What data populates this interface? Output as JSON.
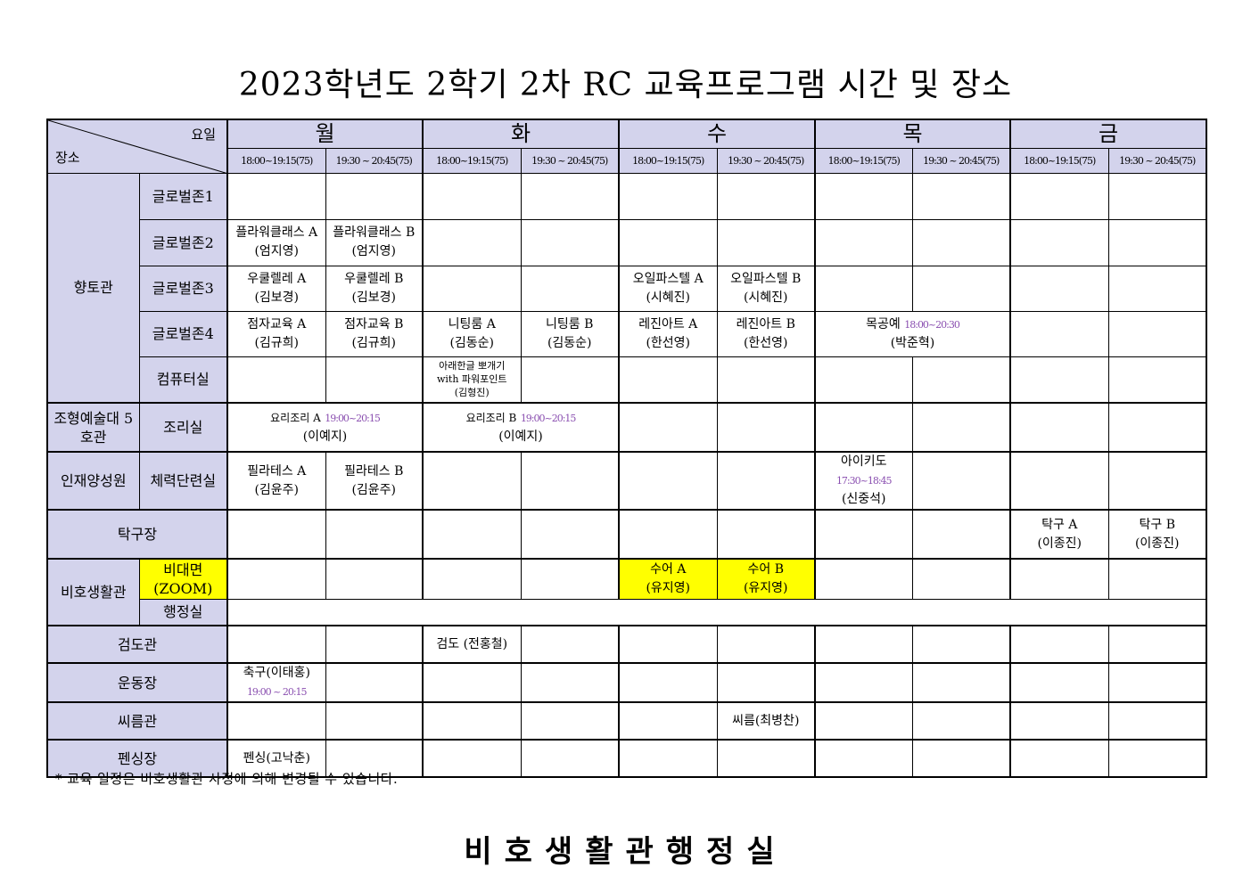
{
  "title": "2023학년도 2학기 2차 RC 교육프로그램 시간 및 장소",
  "header": {
    "corner_day": "요일",
    "corner_place": "장소",
    "days": [
      "월",
      "화",
      "수",
      "목",
      "금"
    ],
    "slots": [
      "18:00~19:15(75)",
      "19:30 ~ 20:45(75)"
    ]
  },
  "colors": {
    "header_bg": "#d3d3ec",
    "highlight": "#ffff00",
    "time_text": "#8a4fb0"
  },
  "rows": [
    {
      "group": "향토관",
      "group_rowspan": 5,
      "room": "글로벌존1",
      "cells": [
        {},
        {},
        {},
        {},
        {},
        {},
        {},
        {},
        {},
        {}
      ]
    },
    {
      "room": "글로벌존2",
      "cells": [
        {
          "text": "플라워클래스 A",
          "teacher": "(엄지영)"
        },
        {
          "text": "플라워클래스 B",
          "teacher": "(엄지영)"
        },
        {},
        {},
        {},
        {},
        {},
        {},
        {},
        {}
      ]
    },
    {
      "room": "글로벌존3",
      "cells": [
        {
          "text": "우쿨렐레 A",
          "teacher": "(김보경)"
        },
        {
          "text": "우쿨렐레 B",
          "teacher": "(김보경)"
        },
        {},
        {},
        {
          "text": "오일파스텔 A",
          "teacher": "(시혜진)"
        },
        {
          "text": "오일파스텔 B",
          "teacher": "(시혜진)"
        },
        {},
        {},
        {},
        {}
      ]
    },
    {
      "room": "글로벌존4",
      "cells": [
        {
          "text": "점자교육 A",
          "teacher": "(김규희)"
        },
        {
          "text": "점자교육 B",
          "teacher": "(김규희)"
        },
        {
          "text": "니팅룸 A",
          "teacher": "(김동순)"
        },
        {
          "text": "니팅룸 B",
          "teacher": "(김동순)"
        },
        {
          "text": "레진아트 A",
          "teacher": "(한선영)"
        },
        {
          "text": "레진아트 B",
          "teacher": "(한선영)"
        },
        {
          "text": "목공예",
          "time": "18:00~20:30",
          "teacher": "(박준혁)",
          "span": 2
        },
        {},
        {}
      ]
    },
    {
      "room": "컴퓨터실",
      "cells": [
        {},
        {},
        {
          "text": "아래한글 뽀개기",
          "text2": "with 파워포인트",
          "teacher": "(김형진)",
          "small": true
        },
        {},
        {},
        {},
        {},
        {},
        {},
        {}
      ]
    },
    {
      "group": "조형예술대 5호관",
      "room": "조리실",
      "top": true,
      "cells": [
        {
          "text": "요리조리 A",
          "time": "19:00~20:15",
          "teacher": "(이예지)",
          "span": 2,
          "smalltitle": true
        },
        {
          "text": "요리조리 B",
          "time": "19:00~20:15",
          "teacher": "(이예지)",
          "span": 2,
          "smalltitle": true
        },
        {},
        {},
        {},
        {},
        {},
        {}
      ]
    },
    {
      "group": "인재양성원",
      "room": "체력단련실",
      "top": true,
      "cells": [
        {
          "text": "필라테스 A",
          "teacher": "(김윤주)"
        },
        {
          "text": "필라테스 B",
          "teacher": "(김윤주)"
        },
        {},
        {},
        {},
        {},
        {
          "text": "아이키도",
          "time": "17:30~18:45",
          "teacher": "(신중석)"
        },
        {},
        {},
        {}
      ]
    },
    {
      "place": "탁구장",
      "top": true,
      "cells": [
        {},
        {},
        {},
        {},
        {},
        {},
        {},
        {},
        {
          "text": "탁구 A",
          "teacher": "(이종진)"
        },
        {
          "text": "탁구 B",
          "teacher": "(이종진)"
        }
      ]
    },
    {
      "group": "비호생활관",
      "group_rowspan": 2,
      "room": "비대면",
      "room2": "(ZOOM)",
      "room_highlight": true,
      "top": true,
      "cells": [
        {},
        {},
        {},
        {},
        {
          "text": "수어 A",
          "teacher": "(유지영)",
          "highlight": true
        },
        {
          "text": "수어 B",
          "teacher": "(유지영)",
          "highlight": true
        },
        {},
        {},
        {},
        {}
      ]
    },
    {
      "room": "행정실",
      "cells": [
        {
          "span": 10
        }
      ]
    },
    {
      "place": "검도관",
      "top": true,
      "cells": [
        {},
        {},
        {
          "text": "검도 (전홍철)"
        },
        {},
        {},
        {},
        {},
        {},
        {},
        {}
      ]
    },
    {
      "place": "운동장",
      "top": true,
      "cells": [
        {
          "text": "축구(이태홍)",
          "time_below": "19:00 ~ 20:15"
        },
        {},
        {},
        {},
        {},
        {},
        {},
        {},
        {},
        {}
      ]
    },
    {
      "place": "씨름관",
      "top": true,
      "cells": [
        {},
        {},
        {},
        {},
        {},
        {
          "text": "씨름(최병찬)"
        },
        {},
        {},
        {},
        {}
      ]
    },
    {
      "place": "펜싱장",
      "top": true,
      "cells": [
        {
          "text": "펜싱(고낙춘)"
        },
        {},
        {},
        {},
        {},
        {},
        {},
        {},
        {},
        {}
      ]
    }
  ],
  "note": "* 교육 일정은 비호생활관 사정에 의해 변경될 수 있습니다.",
  "footer": "비호생활관행정실"
}
